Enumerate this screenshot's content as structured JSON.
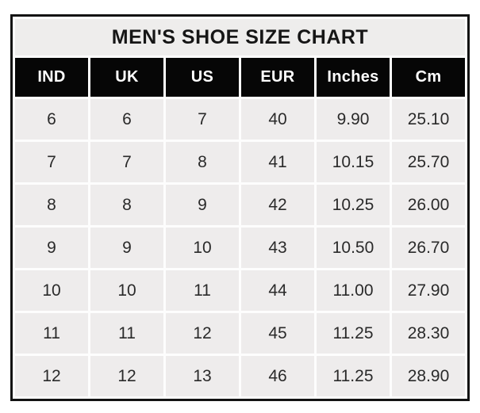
{
  "title": "MEN'S SHOE SIZE CHART",
  "colors": {
    "outer_border": "#131313",
    "header_bg": "#060606",
    "header_text": "#ffffff",
    "title_bg": "#eeedec",
    "cell_bg": "#eeecec",
    "cell_text": "#2a2a2a",
    "separator": "#fdfdfd",
    "page_bg": "#ffffff"
  },
  "chart_data": {
    "type": "table",
    "title": "MEN'S SHOE SIZE CHART",
    "columns": [
      "IND",
      "UK",
      "US",
      "EUR",
      "Inches",
      "Cm"
    ],
    "rows": [
      [
        "6",
        "6",
        "7",
        "40",
        "9.90",
        "25.10"
      ],
      [
        "7",
        "7",
        "8",
        "41",
        "10.15",
        "25.70"
      ],
      [
        "8",
        "8",
        "9",
        "42",
        "10.25",
        "26.00"
      ],
      [
        "9",
        "9",
        "10",
        "43",
        "10.50",
        "26.70"
      ],
      [
        "10",
        "10",
        "11",
        "44",
        "11.00",
        "27.90"
      ],
      [
        "11",
        "11",
        "12",
        "45",
        "11.25",
        "28.30"
      ],
      [
        "12",
        "12",
        "13",
        "46",
        "11.25",
        "28.90"
      ]
    ]
  }
}
